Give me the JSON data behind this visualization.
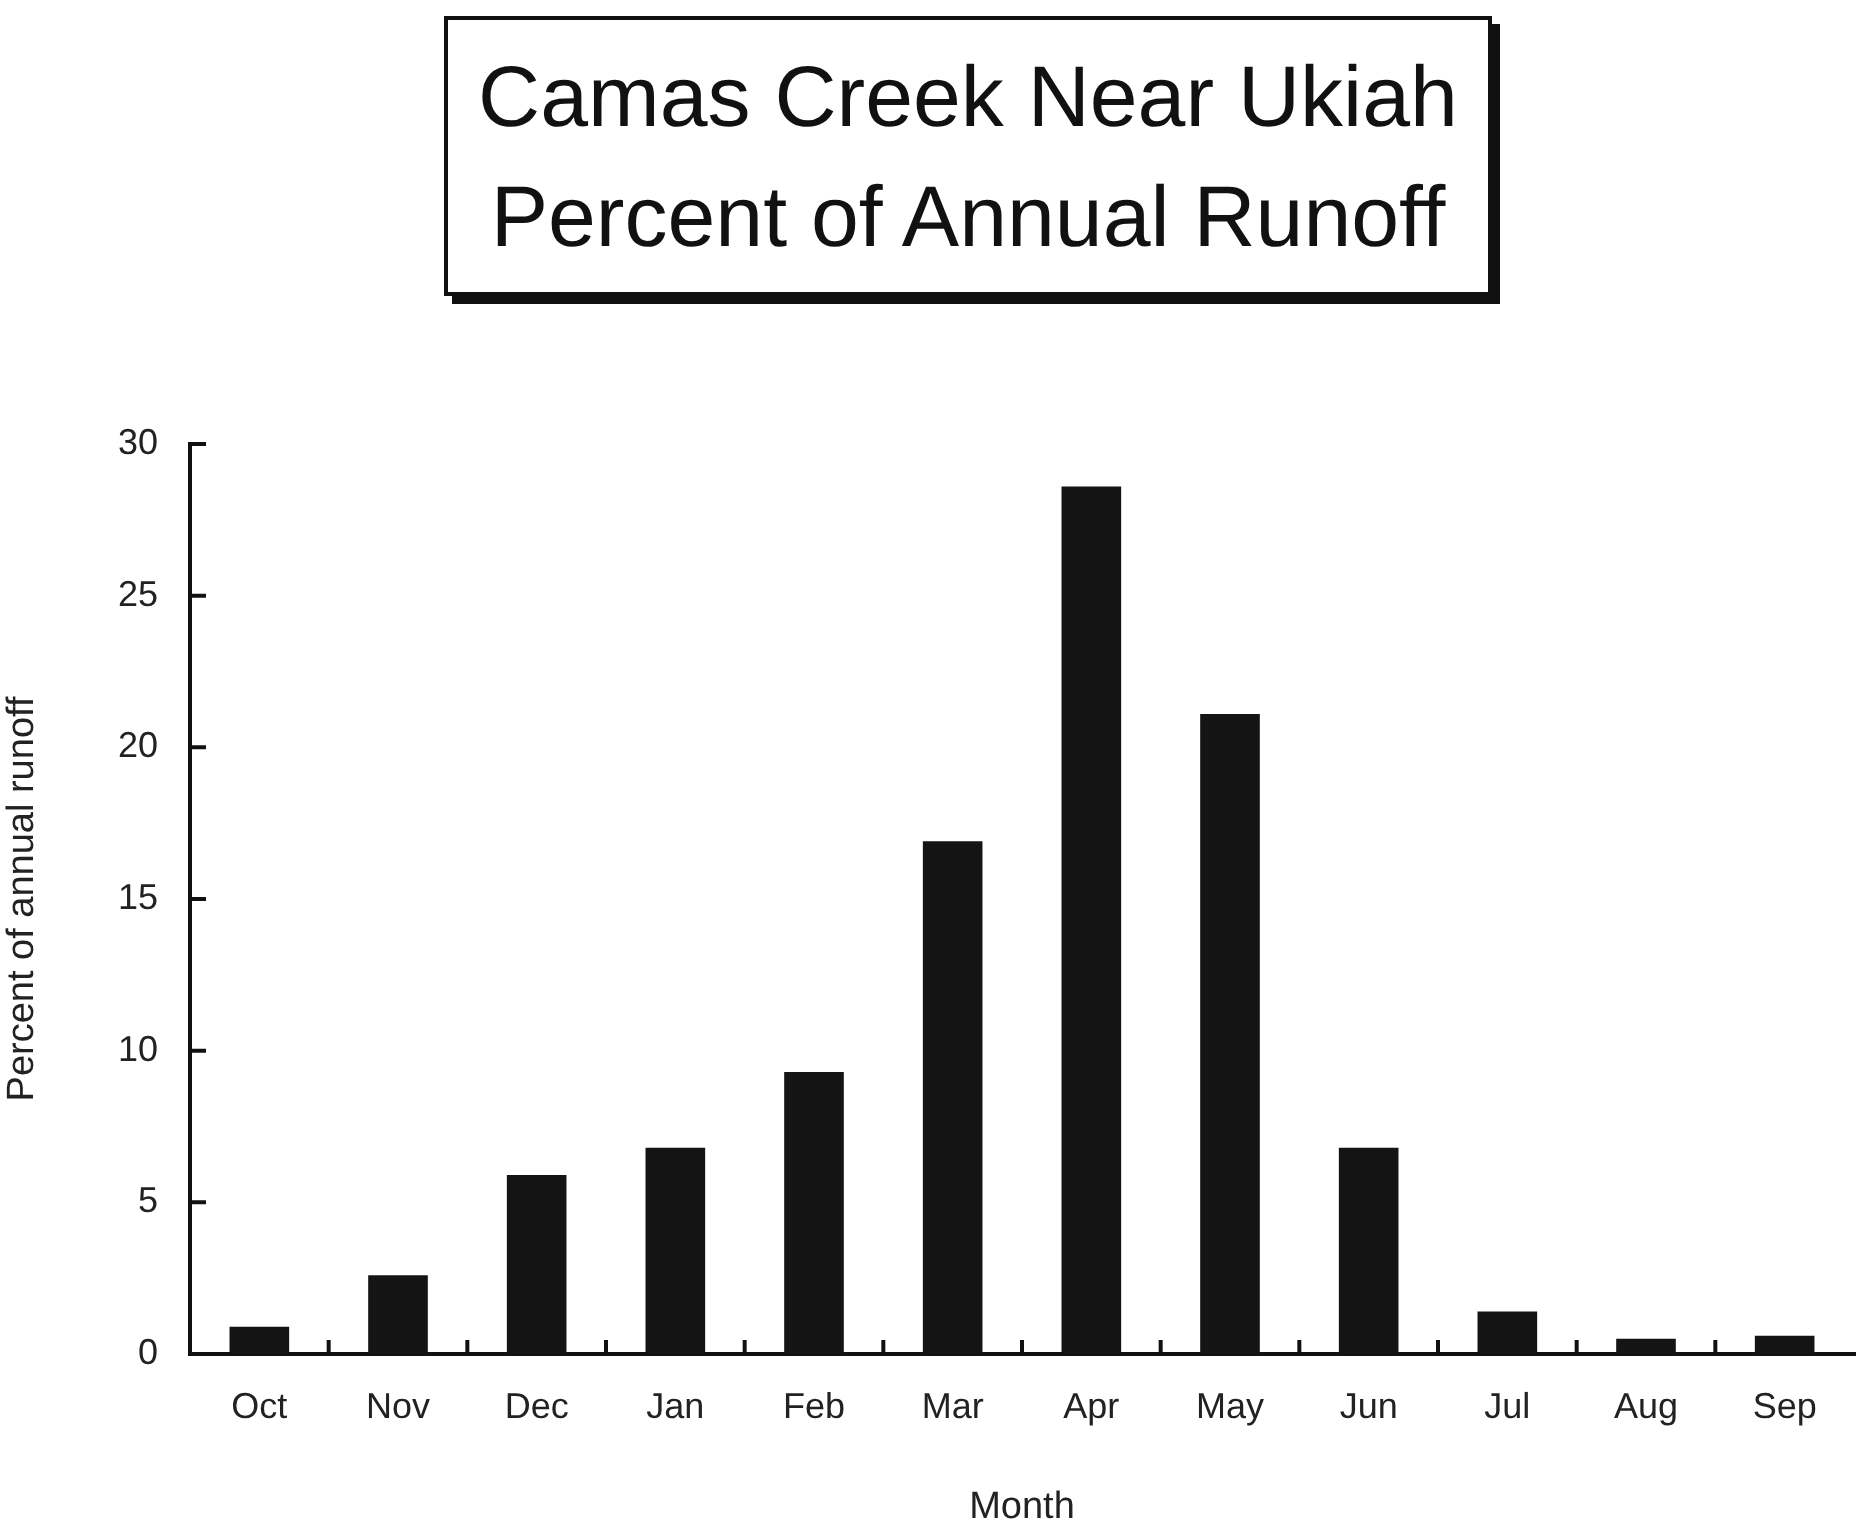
{
  "chart_data": {
    "type": "bar",
    "title": "Camas Creek Near Ukiah",
    "subtitle": "Percent of Annual Runoff",
    "xlabel": "Month",
    "ylabel": "Percent of annual runoff",
    "categories": [
      "Oct",
      "Nov",
      "Dec",
      "Jan",
      "Feb",
      "Mar",
      "Apr",
      "May",
      "Jun",
      "Jul",
      "Aug",
      "Sep"
    ],
    "values": [
      0.9,
      2.6,
      5.9,
      6.8,
      9.3,
      16.9,
      28.6,
      21.1,
      6.8,
      1.4,
      0.5,
      0.6
    ],
    "color": "#141414",
    "ylim": [
      0,
      30
    ],
    "yticks": [
      0,
      5,
      10,
      15,
      20,
      25,
      30
    ],
    "grid": false,
    "legend": false
  }
}
